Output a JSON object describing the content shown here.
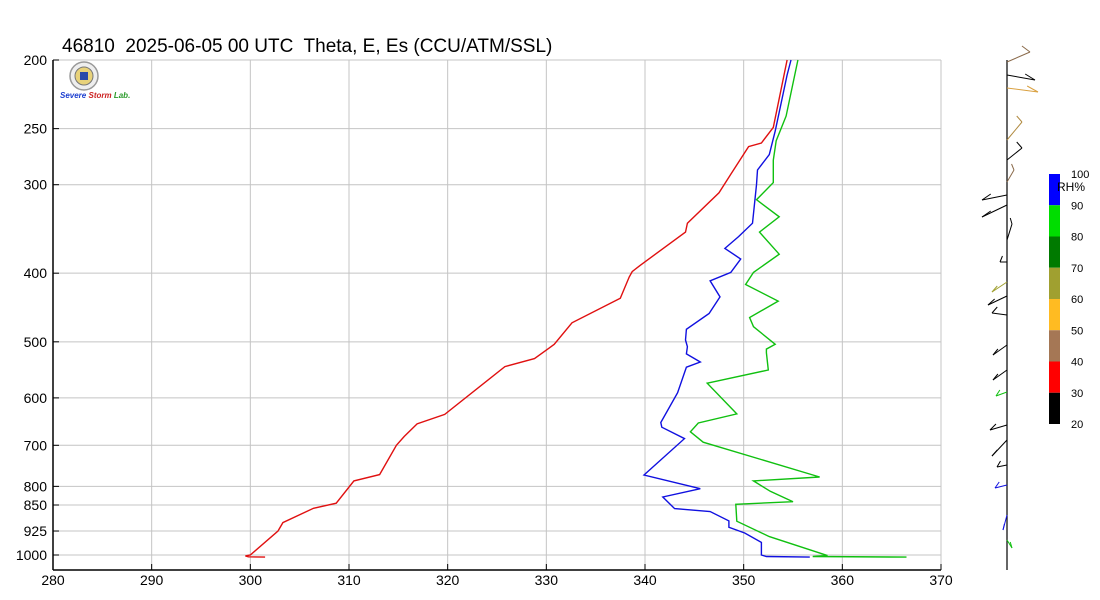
{
  "title": "46810  2025-06-05 00 UTC  Theta, E, Es (CCU/ATM/SSL)",
  "logo": {
    "words": [
      "Severe",
      "Storm",
      "Lab."
    ]
  },
  "chart_data": {
    "type": "line",
    "x_ticks": [
      280,
      290,
      300,
      310,
      320,
      330,
      340,
      350,
      360,
      370
    ],
    "xlim": [
      280,
      370
    ],
    "y_ticks": [
      200,
      250,
      300,
      400,
      500,
      600,
      700,
      800,
      850,
      925,
      1000
    ],
    "ylim": [
      1010,
      200
    ],
    "grid": true,
    "series": [
      {
        "color": "#e01010",
        "points": [
          [
            301.5,
            1007
          ],
          [
            299.8,
            1006
          ],
          [
            299.5,
            1003
          ],
          [
            300.0,
            1000
          ],
          [
            302.8,
            925
          ],
          [
            303.3,
            900
          ],
          [
            306.4,
            859
          ],
          [
            308.7,
            845
          ],
          [
            310.5,
            786
          ],
          [
            313.1,
            770
          ],
          [
            314.8,
            700
          ],
          [
            315.6,
            680
          ],
          [
            316.9,
            653
          ],
          [
            319.7,
            633
          ],
          [
            325.8,
            542
          ],
          [
            328.8,
            528
          ],
          [
            330.3,
            510
          ],
          [
            330.8,
            504
          ],
          [
            332.6,
            470
          ],
          [
            337.5,
            434
          ],
          [
            338.4,
            405
          ],
          [
            338.7,
            398
          ],
          [
            339.5,
            390
          ],
          [
            344.1,
            350
          ],
          [
            344.3,
            340
          ],
          [
            347.5,
            308
          ],
          [
            348.7,
            290
          ],
          [
            350.5,
            265
          ],
          [
            351.8,
            262
          ],
          [
            353.0,
            249
          ],
          [
            354.4,
            200
          ]
        ]
      },
      {
        "color": "#1010e0",
        "points": [
          [
            356.7,
            1007
          ],
          [
            352.3,
            1005
          ],
          [
            351.8,
            1000
          ],
          [
            351.8,
            960
          ],
          [
            350.1,
            931
          ],
          [
            348.5,
            914
          ],
          [
            348.5,
            895
          ],
          [
            346.6,
            868
          ],
          [
            343.0,
            860
          ],
          [
            341.8,
            828
          ],
          [
            345.6,
            806
          ],
          [
            339.9,
            771
          ],
          [
            344.0,
            685
          ],
          [
            341.7,
            660
          ],
          [
            341.6,
            650
          ],
          [
            343.3,
            590
          ],
          [
            344.2,
            543
          ],
          [
            345.6,
            534
          ],
          [
            344.2,
            520
          ],
          [
            344.3,
            508
          ],
          [
            344.1,
            497
          ],
          [
            344.2,
            480
          ],
          [
            346.5,
            456
          ],
          [
            347.6,
            432
          ],
          [
            346.6,
            410
          ],
          [
            348.7,
            399
          ],
          [
            349.7,
            382
          ],
          [
            348.1,
            369
          ],
          [
            349.5,
            355
          ],
          [
            350.9,
            340
          ],
          [
            351.3,
            300
          ],
          [
            351.4,
            286
          ],
          [
            352.6,
            272
          ],
          [
            353.2,
            252
          ],
          [
            354.4,
            210
          ],
          [
            354.8,
            200
          ]
        ]
      },
      {
        "color": "#10c010",
        "points": [
          [
            366.5,
            1007
          ],
          [
            357.0,
            1005
          ],
          [
            358.5,
            1002
          ],
          [
            352.6,
            942
          ],
          [
            349.3,
            896
          ],
          [
            349.2,
            848
          ],
          [
            355.0,
            841
          ],
          [
            352.7,
            813
          ],
          [
            351.0,
            786
          ],
          [
            357.7,
            776
          ],
          [
            345.9,
            693
          ],
          [
            344.6,
            670
          ],
          [
            345.4,
            651
          ],
          [
            349.3,
            632
          ],
          [
            346.3,
            572
          ],
          [
            352.5,
            548
          ],
          [
            352.3,
            518
          ],
          [
            352.3,
            512
          ],
          [
            353.2,
            504
          ],
          [
            351.0,
            476
          ],
          [
            350.6,
            462
          ],
          [
            353.5,
            438
          ],
          [
            350.2,
            415
          ],
          [
            351.0,
            399
          ],
          [
            353.6,
            376
          ],
          [
            351.6,
            350
          ],
          [
            353.6,
            333
          ],
          [
            351.3,
            315
          ],
          [
            353.0,
            298
          ],
          [
            353.0,
            277
          ],
          [
            353.3,
            260
          ],
          [
            354.3,
            240
          ],
          [
            355.5,
            200
          ]
        ]
      }
    ]
  },
  "rh_scale": {
    "title": "RH%",
    "labels": [
      "100",
      "90",
      "80",
      "70",
      "60",
      "50",
      "40",
      "30",
      "20"
    ],
    "colors": [
      "#0000ff",
      "#00dd00",
      "#007a00",
      "#a0a030",
      "#ffbb22",
      "#a57755",
      "#ff0000",
      "#000000"
    ]
  }
}
